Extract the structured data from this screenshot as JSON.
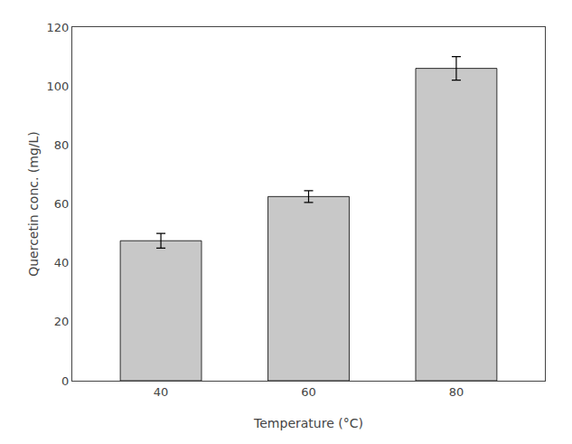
{
  "chart_data": {
    "type": "bar",
    "xlabel": "Temperature (°C)",
    "ylabel": "Quercetin conc. (mg/L)",
    "categories": [
      "40",
      "60",
      "80"
    ],
    "values": [
      47.5,
      62.5,
      106.0
    ],
    "errors": [
      2.5,
      2.0,
      4.0
    ],
    "color": "#C8C8C8",
    "ylim": [
      0,
      120
    ],
    "yticks": [
      0,
      20,
      40,
      60,
      80,
      100,
      120
    ],
    "grid": false
  }
}
